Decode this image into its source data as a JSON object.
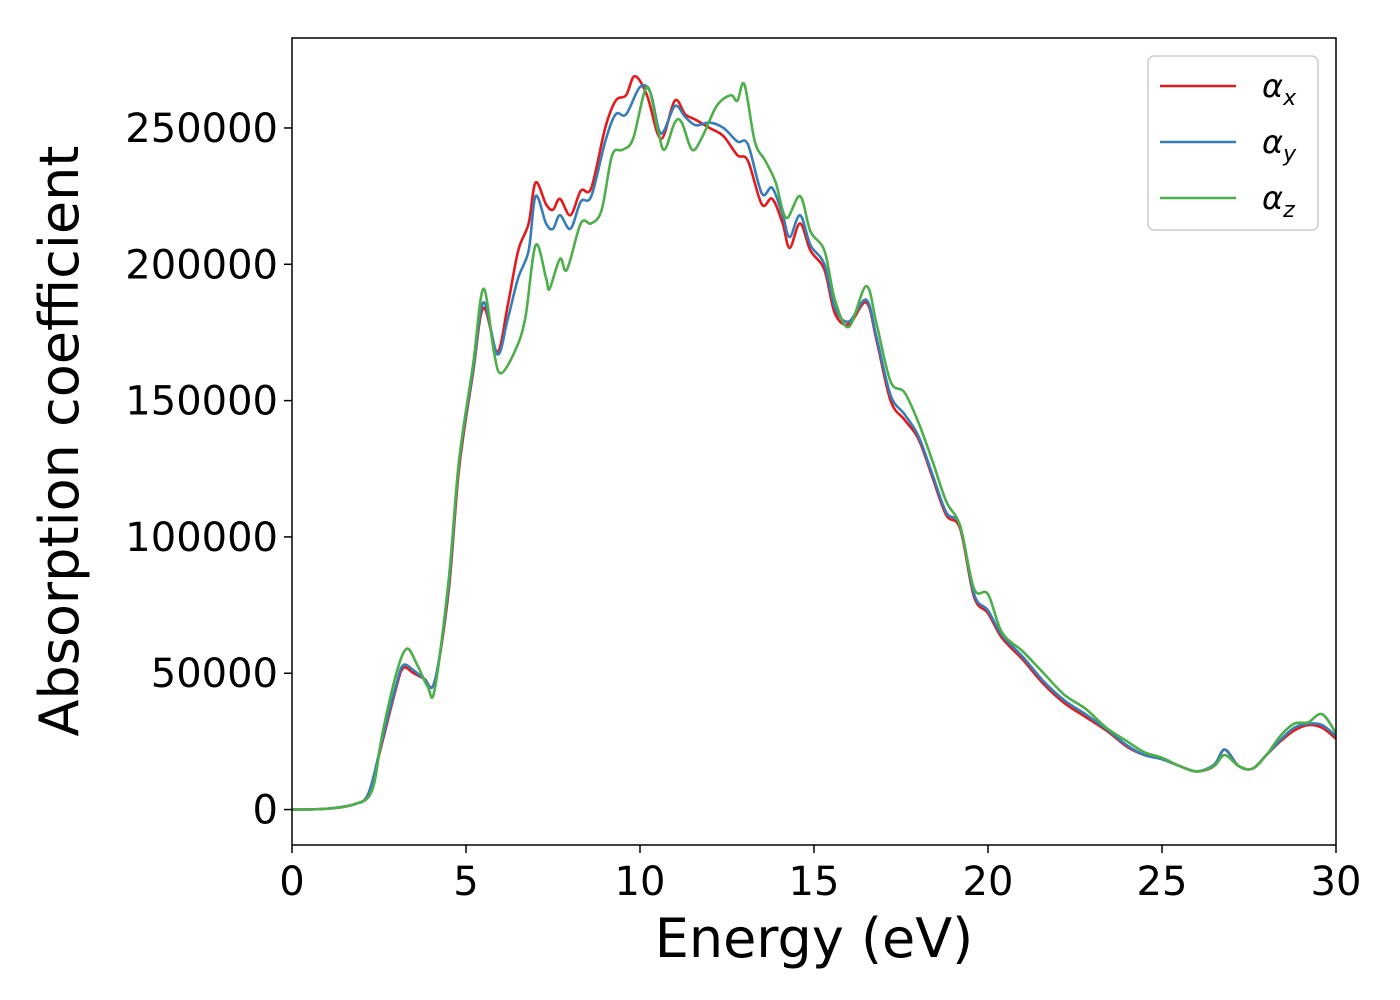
{
  "chart_data": {
    "type": "line",
    "xlabel": "Energy (eV)",
    "ylabel": "Absorption coefficient",
    "xlim": [
      0,
      30
    ],
    "ylim": [
      -13000,
      283000
    ],
    "x_ticks": [
      "0",
      "5",
      "10",
      "15",
      "20",
      "25",
      "30"
    ],
    "y_ticks": [
      "0",
      "50000",
      "100000",
      "150000",
      "200000",
      "250000"
    ],
    "grid": false,
    "legend_position": "top-right",
    "series": [
      {
        "name": "αx",
        "symbol": "α",
        "subscript": "x",
        "color": "#e41a1c",
        "points": [
          [
            0,
            0
          ],
          [
            1,
            300
          ],
          [
            1.8,
            2000
          ],
          [
            2.2,
            6000
          ],
          [
            2.6,
            25000
          ],
          [
            3.0,
            45000
          ],
          [
            3.2,
            52000
          ],
          [
            3.5,
            50000
          ],
          [
            3.8,
            48000
          ],
          [
            4.1,
            47000
          ],
          [
            4.5,
            80000
          ],
          [
            4.8,
            125000
          ],
          [
            5.2,
            160000
          ],
          [
            5.5,
            184000
          ],
          [
            5.9,
            168000
          ],
          [
            6.2,
            185000
          ],
          [
            6.5,
            205000
          ],
          [
            6.8,
            215000
          ],
          [
            7.0,
            230000
          ],
          [
            7.3,
            222000
          ],
          [
            7.5,
            220000
          ],
          [
            7.7,
            224000
          ],
          [
            8.0,
            218000
          ],
          [
            8.3,
            227000
          ],
          [
            8.6,
            228000
          ],
          [
            9.0,
            250000
          ],
          [
            9.3,
            260000
          ],
          [
            9.6,
            262000
          ],
          [
            9.85,
            269000
          ],
          [
            10.2,
            262000
          ],
          [
            10.6,
            246000
          ],
          [
            11.0,
            260000
          ],
          [
            11.3,
            255000
          ],
          [
            11.6,
            253000
          ],
          [
            12.0,
            250000
          ],
          [
            12.4,
            247000
          ],
          [
            12.8,
            240000
          ],
          [
            13.1,
            238000
          ],
          [
            13.5,
            222000
          ],
          [
            13.8,
            224000
          ],
          [
            14.1,
            215000
          ],
          [
            14.3,
            206000
          ],
          [
            14.6,
            215000
          ],
          [
            14.9,
            205000
          ],
          [
            15.3,
            198000
          ],
          [
            15.6,
            182000
          ],
          [
            16.0,
            178000
          ],
          [
            16.5,
            186000
          ],
          [
            16.8,
            172000
          ],
          [
            17.2,
            150000
          ],
          [
            17.6,
            143000
          ],
          [
            18.0,
            136000
          ],
          [
            18.4,
            122000
          ],
          [
            18.8,
            108000
          ],
          [
            19.2,
            103000
          ],
          [
            19.6,
            78000
          ],
          [
            20.0,
            72000
          ],
          [
            20.4,
            63000
          ],
          [
            21.0,
            55000
          ],
          [
            21.6,
            46000
          ],
          [
            22.2,
            39000
          ],
          [
            22.8,
            34000
          ],
          [
            23.4,
            29000
          ],
          [
            24.0,
            23000
          ],
          [
            24.5,
            20000
          ],
          [
            25.0,
            18500
          ],
          [
            25.5,
            16000
          ],
          [
            26.0,
            14000
          ],
          [
            26.5,
            16000
          ],
          [
            26.8,
            22000
          ],
          [
            27.2,
            16000
          ],
          [
            27.6,
            15000
          ],
          [
            28.0,
            20000
          ],
          [
            28.4,
            25000
          ],
          [
            28.8,
            29000
          ],
          [
            29.2,
            31000
          ],
          [
            29.6,
            30000
          ],
          [
            30.0,
            26000
          ]
        ]
      },
      {
        "name": "αy",
        "symbol": "α",
        "subscript": "y",
        "color": "#377eb8",
        "points": [
          [
            0,
            0
          ],
          [
            1,
            300
          ],
          [
            1.8,
            2000
          ],
          [
            2.2,
            6000
          ],
          [
            2.6,
            26000
          ],
          [
            3.0,
            46000
          ],
          [
            3.2,
            53000
          ],
          [
            3.5,
            51000
          ],
          [
            3.8,
            48000
          ],
          [
            4.1,
            47000
          ],
          [
            4.5,
            82000
          ],
          [
            4.8,
            127000
          ],
          [
            5.2,
            161000
          ],
          [
            5.5,
            186000
          ],
          [
            5.9,
            167000
          ],
          [
            6.2,
            180000
          ],
          [
            6.5,
            195000
          ],
          [
            6.8,
            205000
          ],
          [
            7.0,
            225000
          ],
          [
            7.3,
            215000
          ],
          [
            7.5,
            213000
          ],
          [
            7.7,
            218000
          ],
          [
            8.0,
            213000
          ],
          [
            8.3,
            223000
          ],
          [
            8.6,
            225000
          ],
          [
            9.0,
            245000
          ],
          [
            9.3,
            255000
          ],
          [
            9.6,
            255000
          ],
          [
            10.0,
            265000
          ],
          [
            10.3,
            263000
          ],
          [
            10.6,
            248000
          ],
          [
            11.0,
            258000
          ],
          [
            11.3,
            254000
          ],
          [
            11.6,
            251000
          ],
          [
            12.0,
            252000
          ],
          [
            12.4,
            250000
          ],
          [
            12.8,
            245000
          ],
          [
            13.1,
            244000
          ],
          [
            13.5,
            226000
          ],
          [
            13.8,
            228000
          ],
          [
            14.1,
            218000
          ],
          [
            14.3,
            210000
          ],
          [
            14.6,
            218000
          ],
          [
            14.9,
            207000
          ],
          [
            15.3,
            200000
          ],
          [
            15.6,
            184000
          ],
          [
            16.0,
            179000
          ],
          [
            16.5,
            187000
          ],
          [
            16.8,
            173000
          ],
          [
            17.2,
            152000
          ],
          [
            17.6,
            145000
          ],
          [
            18.0,
            137000
          ],
          [
            18.4,
            123000
          ],
          [
            18.8,
            109000
          ],
          [
            19.2,
            104000
          ],
          [
            19.6,
            79000
          ],
          [
            20.0,
            73000
          ],
          [
            20.4,
            64000
          ],
          [
            21.0,
            56000
          ],
          [
            21.6,
            47000
          ],
          [
            22.2,
            40000
          ],
          [
            22.8,
            35000
          ],
          [
            23.4,
            29500
          ],
          [
            24.0,
            23500
          ],
          [
            24.5,
            20000
          ],
          [
            25.0,
            18500
          ],
          [
            25.5,
            16000
          ],
          [
            26.0,
            14000
          ],
          [
            26.5,
            16500
          ],
          [
            26.8,
            22000
          ],
          [
            27.2,
            16000
          ],
          [
            27.6,
            15000
          ],
          [
            28.0,
            20000
          ],
          [
            28.4,
            25500
          ],
          [
            28.8,
            30000
          ],
          [
            29.2,
            31500
          ],
          [
            29.6,
            31000
          ],
          [
            30.0,
            27000
          ]
        ]
      },
      {
        "name": "αz",
        "symbol": "α",
        "subscript": "z",
        "color": "#4daf4a",
        "points": [
          [
            0,
            0
          ],
          [
            1,
            300
          ],
          [
            1.8,
            2000
          ],
          [
            2.3,
            7000
          ],
          [
            2.6,
            28000
          ],
          [
            3.0,
            50000
          ],
          [
            3.3,
            59000
          ],
          [
            3.6,
            53000
          ],
          [
            3.9,
            45000
          ],
          [
            4.1,
            44000
          ],
          [
            4.5,
            84000
          ],
          [
            4.8,
            128000
          ],
          [
            5.2,
            163000
          ],
          [
            5.5,
            191000
          ],
          [
            5.8,
            168000
          ],
          [
            6.0,
            160000
          ],
          [
            6.4,
            168000
          ],
          [
            6.7,
            180000
          ],
          [
            7.0,
            207000
          ],
          [
            7.3,
            195000
          ],
          [
            7.4,
            191000
          ],
          [
            7.7,
            202000
          ],
          [
            7.9,
            198000
          ],
          [
            8.3,
            215000
          ],
          [
            8.6,
            215000
          ],
          [
            8.9,
            220000
          ],
          [
            9.2,
            240000
          ],
          [
            9.5,
            242000
          ],
          [
            9.8,
            246000
          ],
          [
            10.2,
            265000
          ],
          [
            10.5,
            250000
          ],
          [
            10.7,
            242000
          ],
          [
            11.0,
            252000
          ],
          [
            11.2,
            252000
          ],
          [
            11.5,
            242000
          ],
          [
            11.8,
            247000
          ],
          [
            12.2,
            258000
          ],
          [
            12.6,
            262000
          ],
          [
            12.8,
            260000
          ],
          [
            13.0,
            266000
          ],
          [
            13.3,
            245000
          ],
          [
            13.6,
            238000
          ],
          [
            13.9,
            230000
          ],
          [
            14.2,
            217000
          ],
          [
            14.6,
            225000
          ],
          [
            14.9,
            212000
          ],
          [
            15.3,
            205000
          ],
          [
            15.6,
            187000
          ],
          [
            16.0,
            177000
          ],
          [
            16.5,
            192000
          ],
          [
            16.8,
            178000
          ],
          [
            17.2,
            157000
          ],
          [
            17.6,
            153000
          ],
          [
            18.0,
            142000
          ],
          [
            18.4,
            128000
          ],
          [
            18.8,
            113000
          ],
          [
            19.2,
            104000
          ],
          [
            19.6,
            81000
          ],
          [
            20.0,
            79000
          ],
          [
            20.4,
            65000
          ],
          [
            21.0,
            58000
          ],
          [
            21.6,
            50000
          ],
          [
            22.2,
            42000
          ],
          [
            22.8,
            37000
          ],
          [
            23.4,
            30000
          ],
          [
            24.0,
            25000
          ],
          [
            24.5,
            21000
          ],
          [
            25.0,
            19000
          ],
          [
            25.5,
            16000
          ],
          [
            26.0,
            14000
          ],
          [
            26.5,
            16000
          ],
          [
            26.8,
            20000
          ],
          [
            27.2,
            16000
          ],
          [
            27.6,
            15000
          ],
          [
            28.0,
            20000
          ],
          [
            28.4,
            27000
          ],
          [
            28.8,
            31500
          ],
          [
            29.2,
            32000
          ],
          [
            29.6,
            35000
          ],
          [
            30.0,
            28000
          ]
        ]
      }
    ]
  }
}
